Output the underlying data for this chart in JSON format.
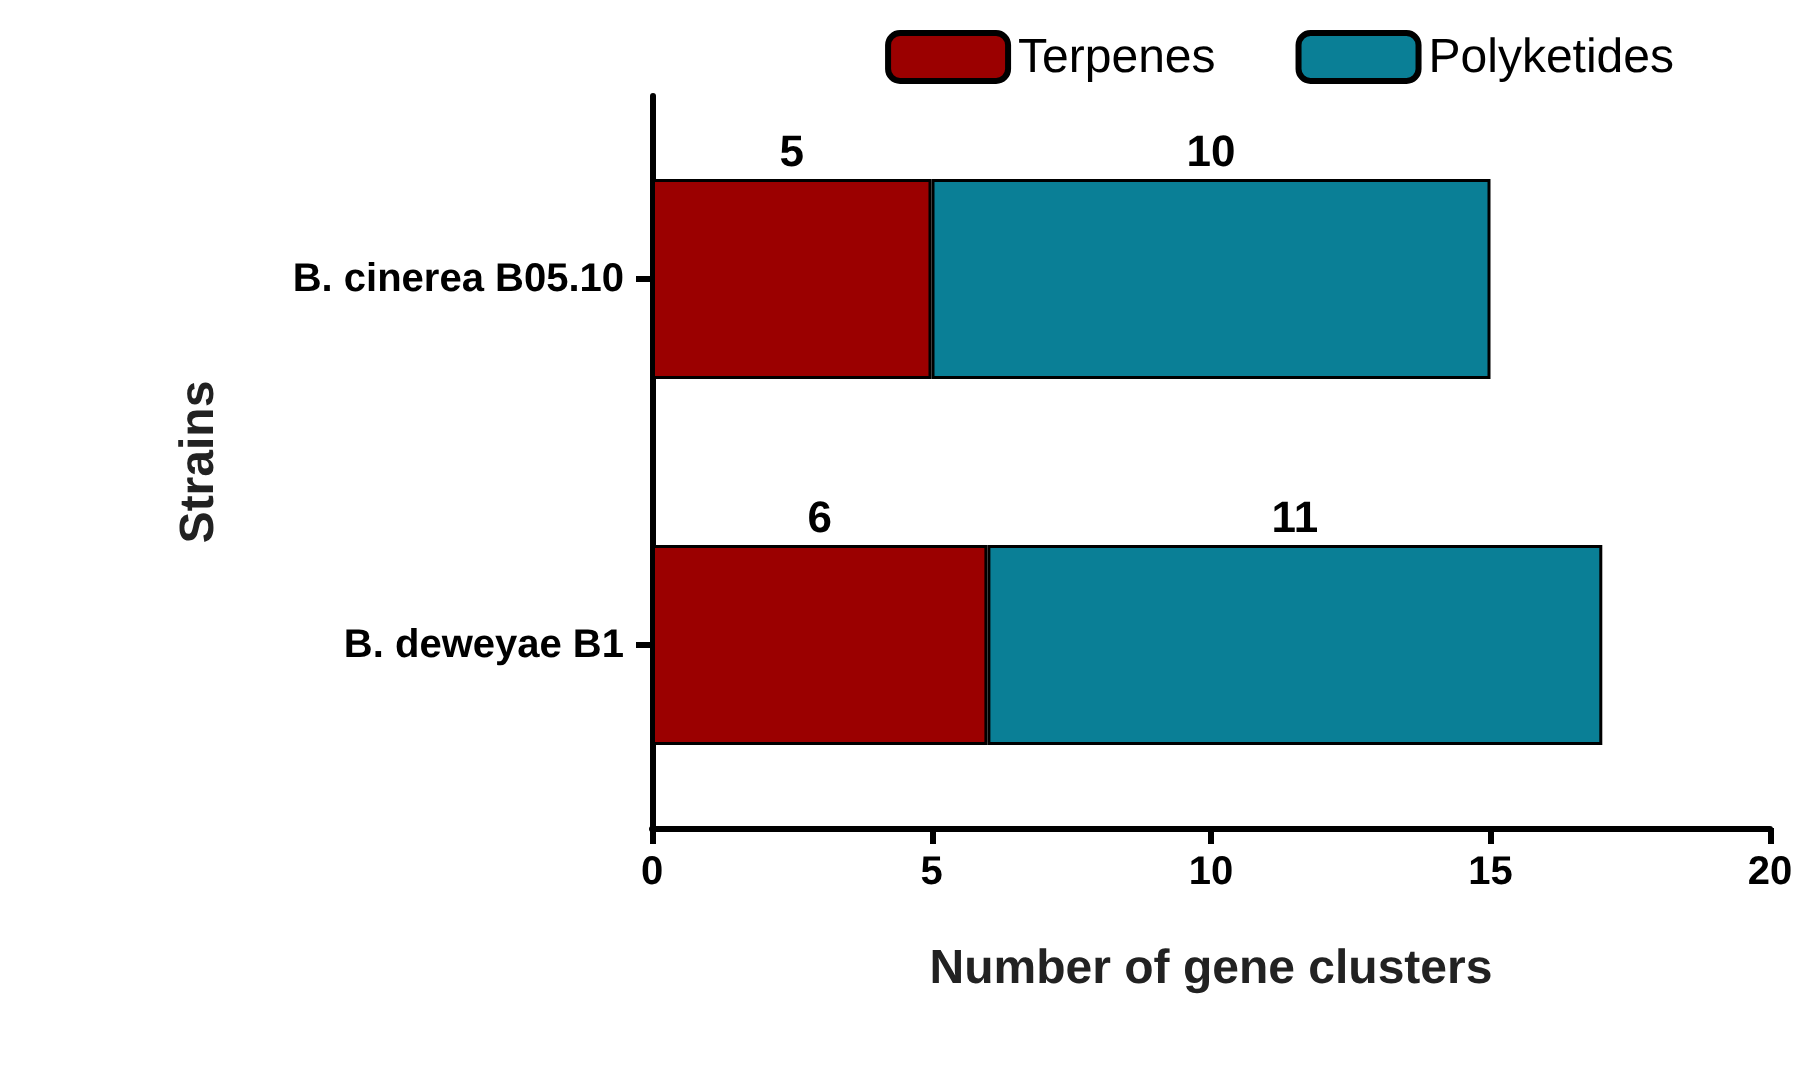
{
  "chart_data": {
    "type": "bar",
    "orientation": "horizontal",
    "stacked": true,
    "xlabel": "Number of gene clusters",
    "ylabel": "Strains",
    "categories": [
      "B. cinerea B05.10",
      "B. deweyae B1"
    ],
    "series": [
      {
        "name": "Terpenes",
        "color": "#9b0000",
        "values": [
          5,
          6
        ]
      },
      {
        "name": "Polyketides",
        "color": "#0a7f96",
        "values": [
          10,
          11
        ]
      }
    ],
    "xlim": [
      0,
      20
    ],
    "xticks": [
      0,
      5,
      10,
      15,
      20
    ],
    "data_labels": true,
    "legend": "top right",
    "grid": false
  }
}
